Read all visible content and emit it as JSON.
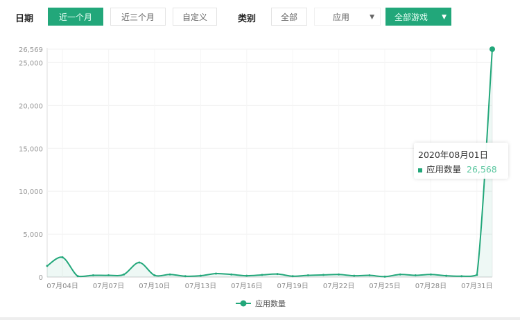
{
  "filters": {
    "date_label": "日期",
    "date_options": [
      "近一个月",
      "近三个月",
      "自定义"
    ],
    "date_active": 0,
    "category_label": "类别",
    "category_all": "全部",
    "category_select": "应用",
    "subcategory_select": "全部游戏"
  },
  "colors": {
    "accent": "#22a77a"
  },
  "tooltip": {
    "date": "2020年08月01日",
    "series": "应用数量",
    "value": "26,568"
  },
  "chart_data": {
    "type": "line",
    "smooth": true,
    "grid": true,
    "legend_position": "bottom",
    "x": [
      "07月03日",
      "07月04日",
      "07月05日",
      "07月06日",
      "07月07日",
      "07月08日",
      "07月09日",
      "07月10日",
      "07月11日",
      "07月12日",
      "07月13日",
      "07月14日",
      "07月15日",
      "07月16日",
      "07月17日",
      "07月18日",
      "07月19日",
      "07月20日",
      "07月21日",
      "07月22日",
      "07月23日",
      "07月24日",
      "07月25日",
      "07月26日",
      "07月27日",
      "07月28日",
      "07月29日",
      "07月30日",
      "07月31日",
      "08月01日"
    ],
    "x_tick_labels": [
      "07月04日",
      "07月07日",
      "07月10日",
      "07月13日",
      "07月16日",
      "07月19日",
      "07月22日",
      "07月25日",
      "07月28日",
      "07月31日"
    ],
    "y_tick_labels": [
      "0",
      "5,000",
      "10,000",
      "15,000",
      "20,000",
      "25,000",
      "26,569"
    ],
    "ylim": [
      0,
      26569
    ],
    "series": [
      {
        "name": "应用数量",
        "values": [
          1300,
          2300,
          100,
          200,
          200,
          300,
          1700,
          200,
          300,
          100,
          150,
          400,
          300,
          150,
          250,
          350,
          100,
          200,
          250,
          300,
          150,
          200,
          50,
          300,
          200,
          300,
          150,
          100,
          250,
          26568
        ]
      }
    ]
  }
}
